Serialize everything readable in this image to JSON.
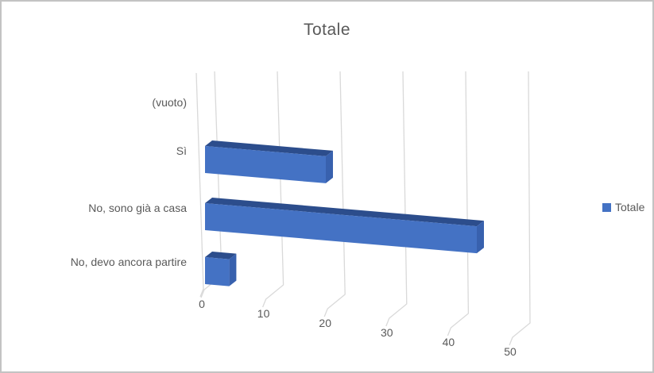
{
  "chart_data": {
    "type": "bar",
    "style": "3d",
    "orientation": "horizontal",
    "title": "Totale",
    "categories": [
      "(vuoto)",
      "Sì",
      "No, sono già a casa",
      "No, devo ancora partire"
    ],
    "series": [
      {
        "name": "Totale",
        "values": [
          0,
          20,
          45,
          4
        ]
      }
    ],
    "xlabel": "",
    "ylabel": "",
    "x_ticks": [
      0,
      10,
      20,
      30,
      40,
      50
    ],
    "xlim": [
      0,
      50
    ],
    "grid": true,
    "legend_position": "right",
    "colors": {
      "bar_front": "#4472c4",
      "bar_top": "#2c4d8c",
      "bar_side": "#3861ae",
      "gridline": "#d9d9d9",
      "axis_text": "#595959",
      "title_text": "#595959"
    }
  }
}
